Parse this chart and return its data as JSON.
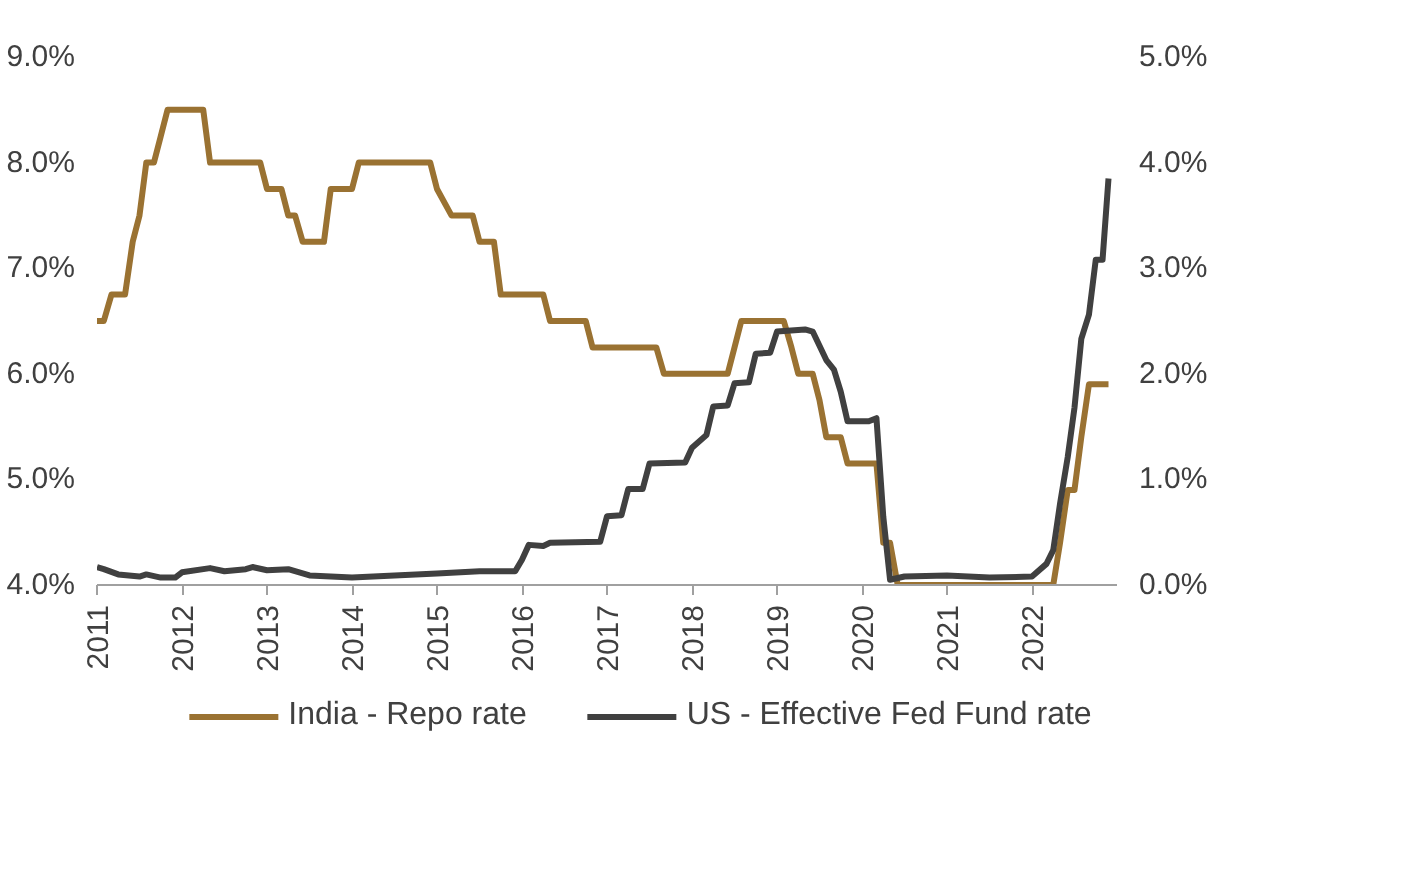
{
  "chart_data": {
    "type": "line",
    "legend": "bottom",
    "grid": false,
    "line_style": "solid",
    "marker": "none",
    "xlim": [
      2011,
      2023
    ],
    "xticks": [
      2011,
      2012,
      2013,
      2014,
      2015,
      2016,
      2017,
      2018,
      2019,
      2020,
      2021,
      2022
    ],
    "ylim": [
      4,
      9
    ],
    "yticks": [
      {
        "value": 4,
        "label": "4.0%"
      },
      {
        "value": 5,
        "label": "5.0%"
      },
      {
        "value": 6,
        "label": "6.0%"
      },
      {
        "value": 7,
        "label": "7.0%"
      },
      {
        "value": 8,
        "label": "8.0%"
      },
      {
        "value": 9,
        "label": "9.0%"
      }
    ],
    "y2lim": [
      0,
      5
    ],
    "y2ticks": [
      {
        "value": 0,
        "label": "0.0%"
      },
      {
        "value": 1,
        "label": "1.0%"
      },
      {
        "value": 2,
        "label": "2.0%"
      },
      {
        "value": 3,
        "label": "3.0%"
      },
      {
        "value": 4,
        "label": "4.0%"
      },
      {
        "value": 5,
        "label": "5.0%"
      }
    ],
    "series": [
      {
        "name": "India - Repo rate",
        "color": "#9a7232",
        "x": [
          2011.0,
          2011.08,
          2011.17,
          2011.33,
          2011.42,
          2011.5,
          2011.58,
          2011.67,
          2011.75,
          2011.83,
          2012.25,
          2012.33,
          2012.92,
          2013.0,
          2013.17,
          2013.25,
          2013.33,
          2013.42,
          2013.67,
          2013.75,
          2014.0,
          2014.08,
          2014.92,
          2015.0,
          2015.17,
          2015.42,
          2015.5,
          2015.67,
          2015.75,
          2016.25,
          2016.33,
          2016.75,
          2016.83,
          2017.58,
          2017.67,
          2018.42,
          2018.5,
          2018.58,
          2019.08,
          2019.17,
          2019.25,
          2019.42,
          2019.5,
          2019.58,
          2019.75,
          2019.83,
          2020.17,
          2020.25,
          2020.33,
          2020.42,
          2022.25,
          2022.33,
          2022.42,
          2022.5,
          2022.58,
          2022.67,
          2022.9
        ],
        "values": [
          6.5,
          6.5,
          6.75,
          6.75,
          7.25,
          7.5,
          8.0,
          8.0,
          8.25,
          8.5,
          8.5,
          8.0,
          8.0,
          7.75,
          7.75,
          7.5,
          7.5,
          7.25,
          7.25,
          7.75,
          7.75,
          8.0,
          8.0,
          7.75,
          7.5,
          7.5,
          7.25,
          7.25,
          6.75,
          6.75,
          6.5,
          6.5,
          6.25,
          6.25,
          6.0,
          6.0,
          6.25,
          6.5,
          6.5,
          6.25,
          6.0,
          6.0,
          5.75,
          5.4,
          5.4,
          5.15,
          5.15,
          4.4,
          4.4,
          4.0,
          4.0,
          4.4,
          4.9,
          4.9,
          5.4,
          5.9,
          5.9
        ]
      },
      {
        "name": "US - Effective Fed Fund rate",
        "color": "#404040",
        "axis": "y2",
        "x": [
          2011.0,
          2011.08,
          2011.25,
          2011.5,
          2011.58,
          2011.75,
          2011.92,
          2012.0,
          2012.33,
          2012.5,
          2012.75,
          2012.83,
          2013.0,
          2013.25,
          2013.5,
          2014.0,
          2014.5,
          2015.0,
          2015.5,
          2015.92,
          2016.0,
          2016.08,
          2016.25,
          2016.33,
          2016.92,
          2017.0,
          2017.17,
          2017.25,
          2017.42,
          2017.5,
          2017.92,
          2018.0,
          2018.17,
          2018.25,
          2018.42,
          2018.5,
          2018.67,
          2018.75,
          2018.92,
          2019.0,
          2019.33,
          2019.42,
          2019.58,
          2019.67,
          2019.75,
          2019.83,
          2020.08,
          2020.17,
          2020.25,
          2020.33,
          2020.5,
          2021.0,
          2021.5,
          2022.0,
          2022.17,
          2022.25,
          2022.33,
          2022.42,
          2022.5,
          2022.58,
          2022.67,
          2022.75,
          2022.83,
          2022.9
        ],
        "values": [
          0.17,
          0.15,
          0.1,
          0.08,
          0.1,
          0.07,
          0.07,
          0.12,
          0.16,
          0.13,
          0.15,
          0.17,
          0.14,
          0.15,
          0.09,
          0.07,
          0.09,
          0.11,
          0.13,
          0.13,
          0.24,
          0.38,
          0.37,
          0.4,
          0.41,
          0.65,
          0.66,
          0.91,
          0.91,
          1.15,
          1.16,
          1.3,
          1.42,
          1.69,
          1.7,
          1.91,
          1.92,
          2.19,
          2.2,
          2.4,
          2.42,
          2.4,
          2.13,
          2.04,
          1.83,
          1.55,
          1.55,
          1.58,
          0.65,
          0.05,
          0.08,
          0.09,
          0.07,
          0.08,
          0.2,
          0.33,
          0.77,
          1.21,
          1.68,
          2.33,
          2.56,
          3.08,
          3.08,
          3.85
        ]
      }
    ]
  }
}
